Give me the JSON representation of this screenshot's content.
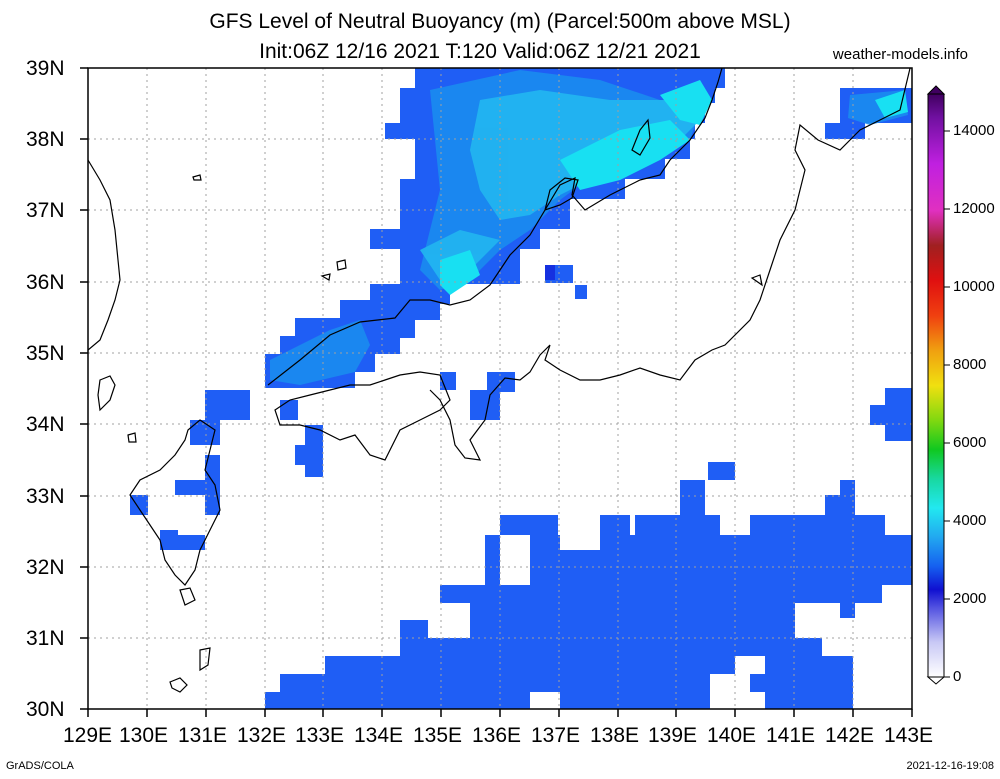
{
  "title_line1": "GFS Level of Neutral Buoyancy (m) (Parcel:500m above MSL)",
  "title_line2": "Init:06Z 12/16 2021 T:120 Valid:06Z 12/21 2021",
  "site": "weather-models.info",
  "footer_left": "GrADS/COLA",
  "footer_right": "2021-12-16-19:08",
  "lat_labels": [
    "39N",
    "38N",
    "37N",
    "36N",
    "35N",
    "34N",
    "33N",
    "32N",
    "31N",
    "30N"
  ],
  "lon_labels": [
    "129E",
    "130E",
    "131E",
    "132E",
    "133E",
    "134E",
    "135E",
    "136E",
    "137E",
    "138E",
    "139E",
    "140E",
    "141E",
    "142E",
    "143E"
  ],
  "colorbar_labels": [
    "14000",
    "12000",
    "10000",
    "8000",
    "6000",
    "4000",
    "2000",
    "0"
  ],
  "colors": {
    "blue": "#1f5ef5",
    "mid_blue": "#1a8cf0",
    "light_blue": "#22b4f0",
    "cyan": "#18e0f2",
    "dark_blue": "#1530e0"
  }
}
